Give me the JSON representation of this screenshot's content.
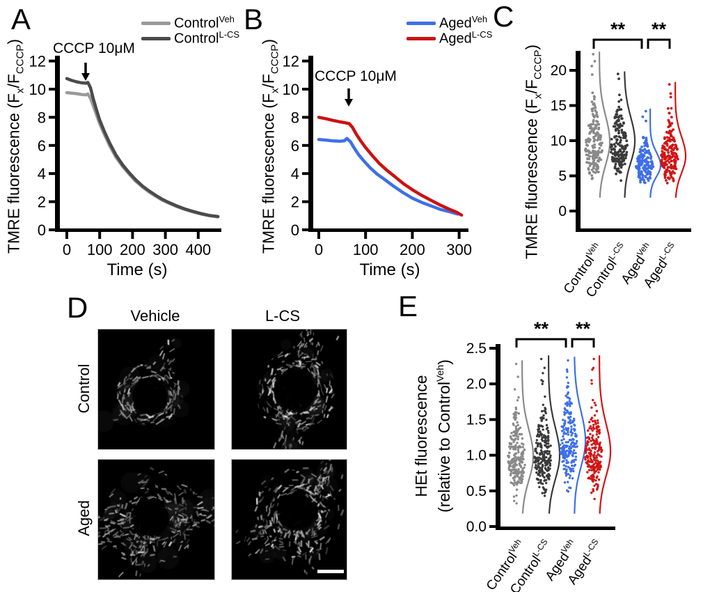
{
  "figure": {
    "panels": {
      "A": {
        "letter": "A",
        "legend": [
          {
            "base": "Control",
            "sup": "Veh",
            "color": "#9a9a9a"
          },
          {
            "base": "Control",
            "sup": "L-CS",
            "color": "#4b4b4b"
          }
        ],
        "annotation": {
          "text": "CCCP 10μM"
        },
        "ylabel": {
          "pre": "TMRE fluorescence (F",
          "sub1": "x",
          "mid": "/F",
          "sub2": "CCCP",
          "post": ")"
        },
        "xlabel": "Time (s)"
      },
      "B": {
        "letter": "B",
        "legend": [
          {
            "base": "Aged",
            "sup": "Veh",
            "color": "#3d6fe8"
          },
          {
            "base": "Aged",
            "sup": "L-CS",
            "color": "#cc1111"
          }
        ],
        "annotation": {
          "text": "CCCP 10μM"
        },
        "ylabel": {
          "pre": "TMRE fluorescence (F",
          "sub1": "x",
          "mid": "/F",
          "sub2": "CCCP",
          "post": ")"
        },
        "xlabel": "Time (s)"
      },
      "C": {
        "letter": "C",
        "ylabel": {
          "pre": "TMRE fluorescence (F",
          "sub1": "x",
          "mid": "/F",
          "sub2": "CCCP",
          "post": ")"
        },
        "groups": [
          {
            "base": "Control",
            "sup": "Veh"
          },
          {
            "base": "Control",
            "sup": "L-CS"
          },
          {
            "base": "Aged",
            "sup": "Veh"
          },
          {
            "base": "Aged",
            "sup": "L-CS"
          }
        ],
        "sig": [
          "**",
          "**"
        ]
      },
      "D": {
        "letter": "D",
        "col_headers": [
          "Vehicle",
          "L-CS"
        ],
        "row_labels": [
          "Control",
          "Aged"
        ],
        "images": [
          {
            "name": "control-vehicle"
          },
          {
            "name": "control-lcs"
          },
          {
            "name": "aged-vehicle"
          },
          {
            "name": "aged-lcs"
          }
        ],
        "scale_bar": true
      },
      "E": {
        "letter": "E",
        "ylabel": {
          "line1": "HEt fluorescence",
          "line2_pre": "(relative to Control",
          "line2_sup": "Veh",
          "line2_post": ")"
        },
        "groups": [
          {
            "base": "Control",
            "sup": "Veh"
          },
          {
            "base": "Control",
            "sup": "L-CS"
          },
          {
            "base": "Aged",
            "sup": "Veh"
          },
          {
            "base": "Aged",
            "sup": "L-CS"
          }
        ],
        "sig": [
          "**",
          "**"
        ]
      }
    }
  },
  "chart_data": [
    {
      "id": "A",
      "type": "line",
      "title": "",
      "xlabel": "Time (s)",
      "ylabel": "TMRE fluorescence (F_x/F_CCCP)",
      "xlim": [
        -15,
        470
      ],
      "ylim": [
        0,
        12.3
      ],
      "xticks": [
        0,
        100,
        200,
        300,
        400
      ],
      "yticks": [
        0,
        2,
        4,
        6,
        8,
        10,
        12
      ],
      "grid": false,
      "legend_position": "top-right",
      "annotation": {
        "text": "CCCP 10μM",
        "x": 60
      },
      "series": [
        {
          "name": "Control^Veh",
          "color": "#9a9a9a",
          "points": [
            [
              0,
              9.75
            ],
            [
              15,
              9.72
            ],
            [
              30,
              9.68
            ],
            [
              45,
              9.62
            ],
            [
              58,
              9.6
            ],
            [
              64,
              9.66
            ],
            [
              72,
              9.35
            ],
            [
              80,
              8.85
            ],
            [
              90,
              8.2
            ],
            [
              100,
              7.55
            ],
            [
              115,
              6.75
            ],
            [
              130,
              6.0
            ],
            [
              150,
              5.15
            ],
            [
              170,
              4.5
            ],
            [
              190,
              3.95
            ],
            [
              210,
              3.45
            ],
            [
              230,
              3.05
            ],
            [
              250,
              2.7
            ],
            [
              270,
              2.4
            ],
            [
              290,
              2.12
            ],
            [
              310,
              1.9
            ],
            [
              335,
              1.65
            ],
            [
              360,
              1.44
            ],
            [
              385,
              1.27
            ],
            [
              410,
              1.12
            ],
            [
              435,
              1.0
            ],
            [
              460,
              0.92
            ]
          ]
        },
        {
          "name": "Control^L-CS",
          "color": "#4b4b4b",
          "points": [
            [
              0,
              10.75
            ],
            [
              15,
              10.62
            ],
            [
              30,
              10.52
            ],
            [
              45,
              10.45
            ],
            [
              58,
              10.42
            ],
            [
              64,
              10.48
            ],
            [
              72,
              10.1
            ],
            [
              80,
              9.35
            ],
            [
              90,
              8.55
            ],
            [
              100,
              7.8
            ],
            [
              115,
              6.95
            ],
            [
              130,
              6.18
            ],
            [
              150,
              5.3
            ],
            [
              170,
              4.62
            ],
            [
              190,
              4.05
            ],
            [
              210,
              3.55
            ],
            [
              230,
              3.12
            ],
            [
              250,
              2.77
            ],
            [
              270,
              2.46
            ],
            [
              290,
              2.18
            ],
            [
              310,
              1.95
            ],
            [
              335,
              1.7
            ],
            [
              360,
              1.48
            ],
            [
              385,
              1.3
            ],
            [
              410,
              1.15
            ],
            [
              435,
              1.02
            ],
            [
              460,
              0.95
            ]
          ]
        }
      ]
    },
    {
      "id": "B",
      "type": "line",
      "title": "",
      "xlabel": "Time (s)",
      "ylabel": "TMRE fluorescence (F_x/F_CCCP)",
      "xlim": [
        -15,
        315
      ],
      "ylim": [
        0,
        12.3
      ],
      "xticks": [
        0,
        100,
        200,
        300
      ],
      "yticks": [
        0,
        2,
        4,
        6,
        8,
        10,
        12
      ],
      "grid": false,
      "legend_position": "top-right",
      "annotation": {
        "text": "CCCP 10μM",
        "x": 63
      },
      "series": [
        {
          "name": "Aged^Veh",
          "color": "#3d6fe8",
          "points": [
            [
              0,
              6.42
            ],
            [
              15,
              6.38
            ],
            [
              30,
              6.32
            ],
            [
              45,
              6.3
            ],
            [
              55,
              6.33
            ],
            [
              60,
              6.5
            ],
            [
              68,
              6.25
            ],
            [
              75,
              5.85
            ],
            [
              85,
              5.35
            ],
            [
              95,
              4.95
            ],
            [
              110,
              4.4
            ],
            [
              125,
              3.95
            ],
            [
              140,
              3.6
            ],
            [
              160,
              3.1
            ],
            [
              180,
              2.65
            ],
            [
              200,
              2.25
            ],
            [
              220,
              1.95
            ],
            [
              240,
              1.7
            ],
            [
              260,
              1.45
            ],
            [
              280,
              1.28
            ],
            [
              297,
              1.12
            ]
          ]
        },
        {
          "name": "Aged^L-CS",
          "color": "#cc1111",
          "points": [
            [
              0,
              8.0
            ],
            [
              15,
              7.9
            ],
            [
              30,
              7.78
            ],
            [
              45,
              7.68
            ],
            [
              55,
              7.62
            ],
            [
              65,
              7.55
            ],
            [
              72,
              7.28
            ],
            [
              80,
              6.8
            ],
            [
              90,
              6.3
            ],
            [
              100,
              5.85
            ],
            [
              115,
              5.25
            ],
            [
              130,
              4.7
            ],
            [
              145,
              4.25
            ],
            [
              160,
              3.85
            ],
            [
              180,
              3.3
            ],
            [
              200,
              2.85
            ],
            [
              220,
              2.45
            ],
            [
              240,
              2.1
            ],
            [
              260,
              1.75
            ],
            [
              280,
              1.45
            ],
            [
              295,
              1.25
            ],
            [
              305,
              1.05
            ]
          ]
        }
      ]
    },
    {
      "id": "C",
      "type": "beeswarm-violin",
      "title": "",
      "ylabel": "TMRE fluorescence (F_x/F_CCCP)",
      "ylim": [
        0,
        22.5
      ],
      "yticks": [
        0,
        5,
        10,
        15,
        20
      ],
      "grid": false,
      "groups": [
        {
          "name": "Control^Veh",
          "color": "#8a8a8a",
          "n": 175,
          "mode": 9.0,
          "sd_lo": 2.4,
          "sd_hi": 3.0,
          "min": 4.2,
          "max": 22.3,
          "curve_mode": 9.8,
          "curve_sd": 3.2,
          "outliers": [
            22.3,
            21.3,
            20.6,
            19.4,
            16.8,
            15.9
          ]
        },
        {
          "name": "Control^L-CS",
          "color": "#3a3a3a",
          "n": 175,
          "mode": 9.2,
          "sd_lo": 2.3,
          "sd_hi": 2.8,
          "min": 4.3,
          "max": 19.5,
          "curve_mode": 9.9,
          "curve_sd": 3.0,
          "outliers": [
            19.5,
            18.8,
            16.5,
            15.8
          ]
        },
        {
          "name": "Aged^Veh",
          "color": "#3d6fe8",
          "n": 165,
          "mode": 6.4,
          "sd_lo": 1.4,
          "sd_hi": 1.8,
          "min": 3.8,
          "max": 14.2,
          "curve_mode": 6.5,
          "curve_sd": 1.6,
          "outliers": [
            14.2,
            13.4,
            12.8
          ]
        },
        {
          "name": "Aged^L-CS",
          "color": "#d21414",
          "n": 165,
          "mode": 7.8,
          "sd_lo": 1.9,
          "sd_hi": 2.5,
          "min": 3.9,
          "max": 18.0,
          "curve_mode": 7.8,
          "curve_sd": 2.4,
          "outliers": [
            18.0,
            16.7,
            16.2,
            14.6,
            13.9
          ]
        }
      ],
      "significance": [
        {
          "from": 0,
          "to": 2,
          "label": "**",
          "group1": "Control^Veh",
          "group2": "Aged^Veh"
        },
        {
          "from": 2,
          "to": 3,
          "label": "**",
          "group1": "Aged^Veh",
          "group2": "Aged^L-CS"
        }
      ]
    },
    {
      "id": "E",
      "type": "beeswarm-violin",
      "title": "",
      "ylabel": "HEt fluorescence (relative to Control^Veh)",
      "ylim": [
        0,
        2.5
      ],
      "yticks": [
        "0.0",
        "0.5",
        "1.0",
        "1.5",
        "2.0",
        "2.5"
      ],
      "grid": false,
      "groups": [
        {
          "name": "Control^Veh",
          "color": "#8a8a8a",
          "n": 240,
          "mode": 0.95,
          "sd_lo": 0.24,
          "sd_hi": 0.34,
          "min": 0.32,
          "max": 2.28,
          "curve_mode": 0.98,
          "curve_sd": 0.33,
          "outliers": [
            2.28,
            2.1
          ]
        },
        {
          "name": "Control^L-CS",
          "color": "#3a3a3a",
          "n": 240,
          "mode": 0.97,
          "sd_lo": 0.26,
          "sd_hi": 0.36,
          "min": 0.3,
          "max": 2.35,
          "curve_mode": 1.0,
          "curve_sd": 0.34,
          "outliers": [
            2.35,
            2.15,
            2.0
          ]
        },
        {
          "name": "Aged^Veh",
          "color": "#3d6fe8",
          "n": 210,
          "mode": 1.15,
          "sd_lo": 0.28,
          "sd_hi": 0.38,
          "min": 0.4,
          "max": 2.33,
          "curve_mode": 1.2,
          "curve_sd": 0.36,
          "outliers": [
            2.33,
            2.2,
            1.95
          ]
        },
        {
          "name": "Aged^L-CS",
          "color": "#d21414",
          "n": 215,
          "mode": 1.02,
          "sd_lo": 0.26,
          "sd_hi": 0.36,
          "min": 0.3,
          "max": 2.35,
          "curve_mode": 1.05,
          "curve_sd": 0.34,
          "outliers": [
            2.35,
            2.2,
            2.05
          ]
        }
      ],
      "significance": [
        {
          "from": 0,
          "to": 2,
          "label": "**",
          "group1": "Control^Veh",
          "group2": "Aged^Veh"
        },
        {
          "from": 2,
          "to": 3,
          "label": "**",
          "group1": "Aged^Veh",
          "group2": "Aged^L-CS"
        }
      ]
    }
  ]
}
